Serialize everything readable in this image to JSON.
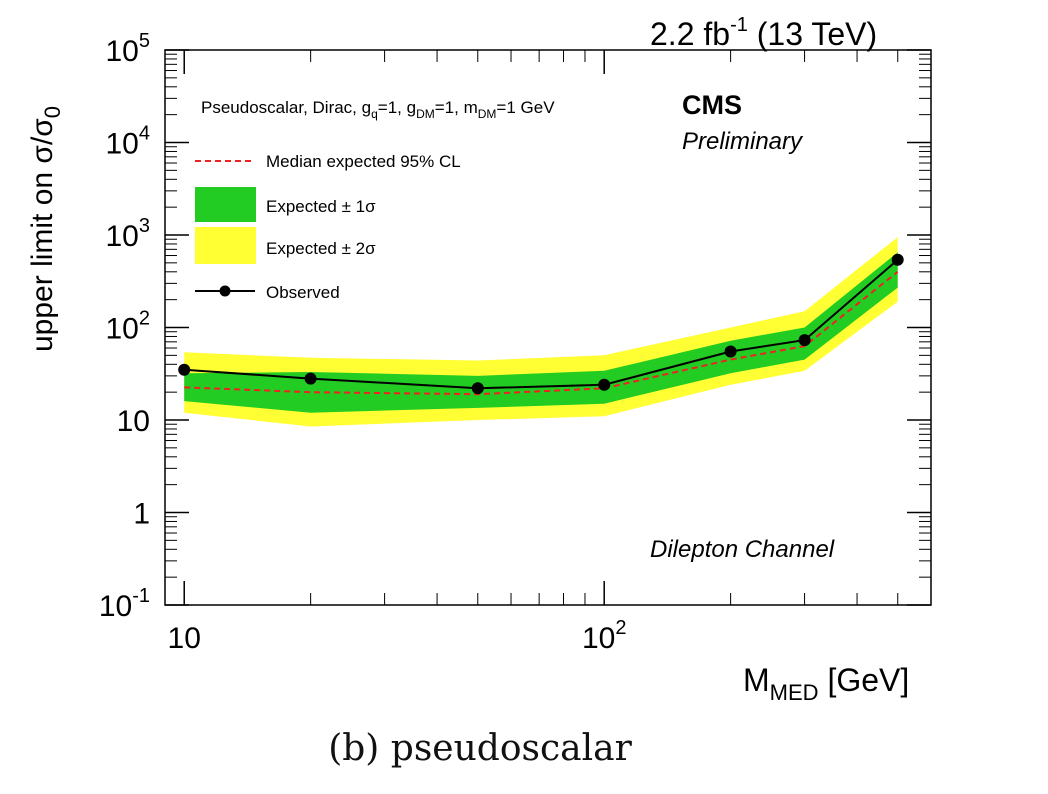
{
  "chart_data": {
    "type": "line",
    "energy_label": "2.2 fb",
    "energy_sup": "-1",
    "energy_tail": " (13 TeV)",
    "experiment": "CMS",
    "status": "Preliminary",
    "channel": "Dilepton Channel",
    "model_label": "Pseudoscalar, Dirac, g_q=1, g_DM=1, m_DM=1 GeV",
    "xlabel": "M_MED [GeV]",
    "ylabel": "upper limit on σ/σ0",
    "xscale": "log",
    "yscale": "log",
    "xlim": [
      9,
      600
    ],
    "ylim": [
      0.1,
      100000
    ],
    "x_tick_labels": [
      "10",
      "10^2"
    ],
    "y_tick_labels": [
      "10^-1",
      "1",
      "10",
      "10^2",
      "10^3",
      "10^4",
      "10^5"
    ],
    "legend_placement": "top-left",
    "x": [
      10,
      20,
      50,
      100,
      200,
      300,
      500
    ],
    "series": [
      {
        "name": "Median expected 95% CL",
        "style": "dashed",
        "color": "#ee2222",
        "values": [
          22.5,
          20,
          19,
          22,
          45,
          63,
          400
        ]
      },
      {
        "name": "Expected ± 1σ",
        "style": "band",
        "color": "#22cc22",
        "lower": [
          16,
          12,
          13.5,
          15,
          32,
          45,
          270
        ],
        "upper": [
          32,
          33,
          30,
          34,
          72,
          100,
          650
        ]
      },
      {
        "name": "Expected ± 2σ",
        "style": "band",
        "color": "#ffff33",
        "lower": [
          12,
          8.5,
          10,
          11,
          24,
          34,
          190
        ],
        "upper": [
          54,
          47,
          44,
          50,
          100,
          150,
          950
        ]
      },
      {
        "name": "Observed",
        "style": "line-markers",
        "color": "#000000",
        "values": [
          35,
          28,
          22,
          24,
          55,
          73,
          540
        ]
      }
    ]
  },
  "caption": "(b) pseudoscalar"
}
